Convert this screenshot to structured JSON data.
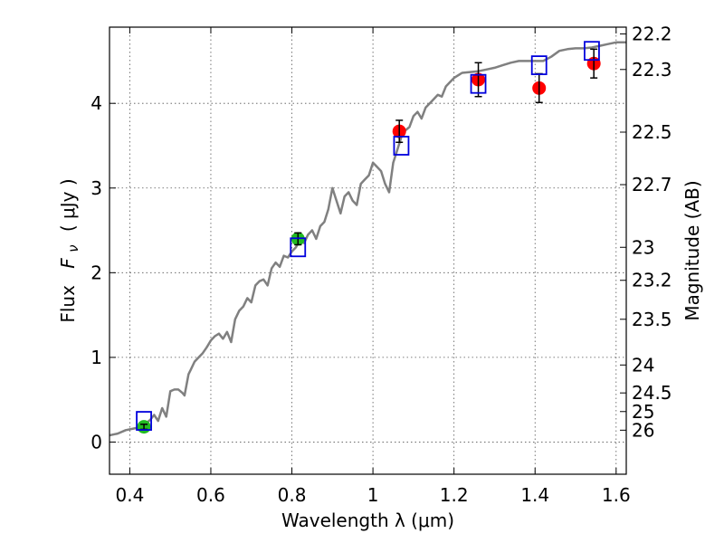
{
  "chart_data": {
    "type": "scatter",
    "xlabel": "Wavelength  λ (μm)",
    "ylabel_prefix": "Flux",
    "ylabel_symbol": "F",
    "ylabel_subscript": "ν",
    "ylabel_unit": "( μJy )",
    "y2label": "Magnitude (AB)",
    "xlim": [
      0.35,
      1.625
    ],
    "ylim": [
      -0.38,
      4.9
    ],
    "grid": true,
    "x_ticks": [
      0.4,
      0.6,
      0.8,
      1.0,
      1.2,
      1.4,
      1.6
    ],
    "x_tick_labels": [
      "0.4",
      "0.6",
      "0.8",
      "1",
      "1.2",
      "1.4",
      "1.6"
    ],
    "y_ticks": [
      0,
      1,
      2,
      3,
      4
    ],
    "y_tick_labels": [
      "0",
      "1",
      "2",
      "3",
      "4"
    ],
    "mag_ticks": [
      {
        "label": "22.2",
        "flux": 4.82
      },
      {
        "label": "22.3",
        "flux": 4.4
      },
      {
        "label": "22.5",
        "flux": 3.66
      },
      {
        "label": "22.7",
        "flux": 3.04
      },
      {
        "label": "23",
        "flux": 2.3
      },
      {
        "label": "23.2",
        "flux": 1.91
      },
      {
        "label": "23.5",
        "flux": 1.45
      },
      {
        "label": "24",
        "flux": 0.91
      },
      {
        "label": "24.5",
        "flux": 0.58
      },
      {
        "label": "25",
        "flux": 0.36
      },
      {
        "label": "26",
        "flux": 0.14
      }
    ],
    "colors": {
      "model": "#808080",
      "green": "#22bb22",
      "red": "#ff0000",
      "square": "#0000dd",
      "error": "#000000",
      "grid": "#555555"
    },
    "series": [
      {
        "kind": "model-sed",
        "x": [
          0.35,
          0.37,
          0.39,
          0.41,
          0.43,
          0.44,
          0.45,
          0.46,
          0.47,
          0.48,
          0.49,
          0.5,
          0.51,
          0.52,
          0.53,
          0.535,
          0.545,
          0.55,
          0.56,
          0.57,
          0.58,
          0.59,
          0.6,
          0.61,
          0.62,
          0.63,
          0.64,
          0.65,
          0.66,
          0.67,
          0.68,
          0.69,
          0.7,
          0.71,
          0.72,
          0.73,
          0.74,
          0.75,
          0.76,
          0.77,
          0.78,
          0.79,
          0.8,
          0.81,
          0.82,
          0.83,
          0.84,
          0.85,
          0.86,
          0.87,
          0.88,
          0.89,
          0.9,
          0.91,
          0.92,
          0.93,
          0.94,
          0.95,
          0.96,
          0.97,
          0.98,
          0.99,
          1.0,
          1.01,
          1.02,
          1.03,
          1.04,
          1.05,
          1.06,
          1.07,
          1.08,
          1.09,
          1.1,
          1.11,
          1.12,
          1.13,
          1.14,
          1.15,
          1.16,
          1.17,
          1.18,
          1.19,
          1.2,
          1.22,
          1.24,
          1.26,
          1.28,
          1.3,
          1.32,
          1.34,
          1.36,
          1.38,
          1.4,
          1.42,
          1.44,
          1.46,
          1.48,
          1.5,
          1.52,
          1.54,
          1.56,
          1.58,
          1.6,
          1.625
        ],
        "y": [
          0.08,
          0.1,
          0.14,
          0.16,
          0.18,
          0.22,
          0.26,
          0.32,
          0.25,
          0.4,
          0.3,
          0.6,
          0.62,
          0.62,
          0.58,
          0.55,
          0.8,
          0.85,
          0.95,
          1.0,
          1.05,
          1.12,
          1.2,
          1.25,
          1.28,
          1.22,
          1.3,
          1.18,
          1.45,
          1.55,
          1.6,
          1.7,
          1.65,
          1.85,
          1.9,
          1.92,
          1.85,
          2.05,
          2.12,
          2.07,
          2.2,
          2.18,
          2.25,
          2.3,
          2.4,
          2.35,
          2.45,
          2.5,
          2.4,
          2.55,
          2.6,
          2.75,
          3.0,
          2.85,
          2.7,
          2.9,
          2.95,
          2.85,
          2.8,
          3.05,
          3.1,
          3.15,
          3.3,
          3.25,
          3.2,
          3.05,
          2.95,
          3.3,
          3.45,
          3.6,
          3.68,
          3.72,
          3.85,
          3.9,
          3.82,
          3.95,
          4.0,
          4.05,
          4.1,
          4.08,
          4.2,
          4.25,
          4.3,
          4.36,
          4.37,
          4.38,
          4.4,
          4.42,
          4.45,
          4.48,
          4.5,
          4.5,
          4.5,
          4.5,
          4.55,
          4.62,
          4.64,
          4.65,
          4.65,
          4.66,
          4.68,
          4.7,
          4.72,
          4.72
        ]
      },
      {
        "kind": "green-points",
        "x": [
          0.435,
          0.815
        ],
        "y": [
          0.18,
          2.4
        ],
        "err": [
          0.03,
          0.07
        ]
      },
      {
        "kind": "red-points",
        "x": [
          1.065,
          1.26,
          1.41,
          1.545
        ],
        "y": [
          3.67,
          4.28,
          4.18,
          4.47
        ],
        "err": [
          0.13,
          0.2,
          0.17,
          0.17
        ]
      },
      {
        "kind": "blue-squares",
        "x": [
          0.435,
          0.815,
          1.07,
          1.26,
          1.41,
          1.54
        ],
        "y": [
          0.25,
          2.3,
          3.5,
          4.23,
          4.45,
          4.62
        ]
      }
    ]
  }
}
